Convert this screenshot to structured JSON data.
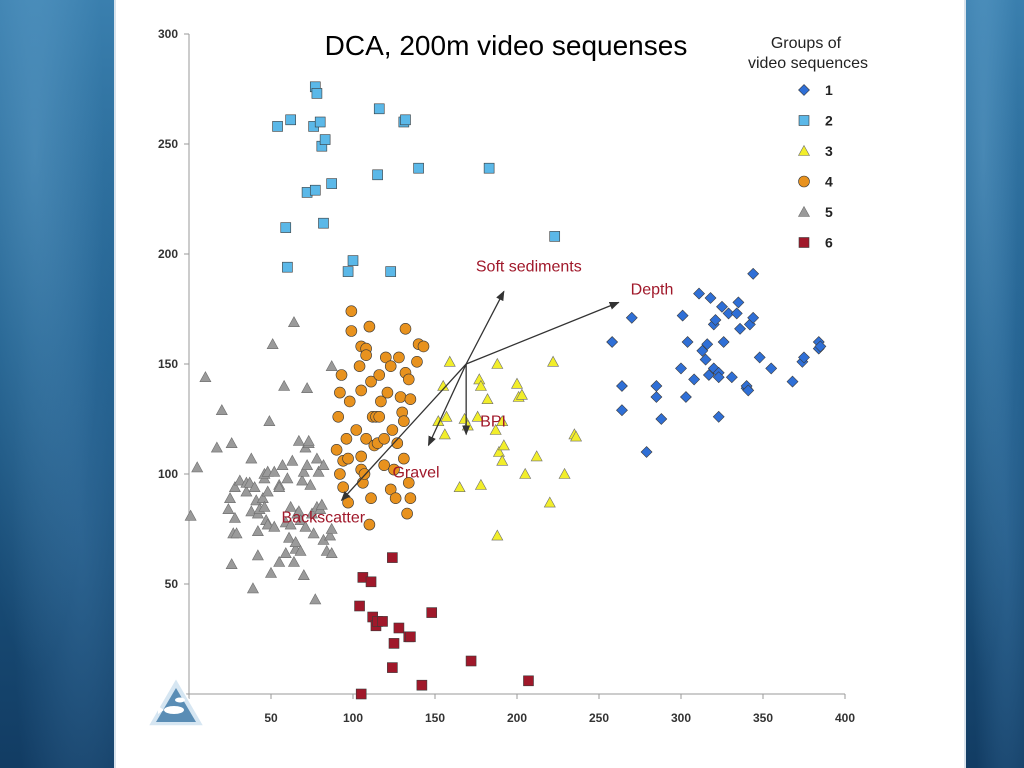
{
  "chart_data": {
    "type": "scatter",
    "title": "DCA, 200m video sequenses",
    "xlabel": "",
    "ylabel": "",
    "xlim": [
      0,
      400
    ],
    "ylim": [
      0,
      300
    ],
    "x_ticks": [
      0,
      50,
      100,
      150,
      200,
      250,
      300,
      350,
      400
    ],
    "y_ticks": [
      0,
      50,
      100,
      150,
      200,
      250,
      300
    ],
    "grid": false,
    "legend": {
      "title": [
        "Groups of",
        "video sequences"
      ],
      "placement": "top-right"
    },
    "series": [
      {
        "name": "1",
        "marker": "diamond",
        "color": "#2f6fd6",
        "points": [
          [
            258,
            160
          ],
          [
            264,
            140
          ],
          [
            264,
            129
          ],
          [
            270,
            171
          ],
          [
            279,
            110
          ],
          [
            285,
            140
          ],
          [
            285,
            135
          ],
          [
            288,
            125
          ],
          [
            300,
            148
          ],
          [
            301,
            172
          ],
          [
            303,
            135
          ],
          [
            304,
            160
          ],
          [
            308,
            143
          ],
          [
            311,
            182
          ],
          [
            313,
            156
          ],
          [
            315,
            152
          ],
          [
            316,
            159
          ],
          [
            317,
            145
          ],
          [
            318,
            180
          ],
          [
            320,
            168
          ],
          [
            320,
            148
          ],
          [
            321,
            170
          ],
          [
            323,
            146
          ],
          [
            323,
            144
          ],
          [
            323,
            126
          ],
          [
            325,
            176
          ],
          [
            326,
            160
          ],
          [
            329,
            173
          ],
          [
            331,
            144
          ],
          [
            334,
            173
          ],
          [
            335,
            178
          ],
          [
            336,
            166
          ],
          [
            340,
            139
          ],
          [
            340,
            140
          ],
          [
            341,
            138
          ],
          [
            342,
            168
          ],
          [
            344,
            191
          ],
          [
            344,
            171
          ],
          [
            348,
            153
          ],
          [
            355,
            148
          ],
          [
            368,
            142
          ],
          [
            374,
            151
          ],
          [
            375,
            153
          ],
          [
            384,
            157
          ],
          [
            384,
            160
          ],
          [
            385,
            158
          ]
        ]
      },
      {
        "name": "2",
        "marker": "square",
        "color": "#5bb8e8",
        "points": [
          [
            54,
            258
          ],
          [
            59,
            212
          ],
          [
            60,
            194
          ],
          [
            62,
            261
          ],
          [
            72,
            228
          ],
          [
            76,
            258
          ],
          [
            77,
            276
          ],
          [
            77,
            229
          ],
          [
            78,
            273
          ],
          [
            80,
            260
          ],
          [
            81,
            249
          ],
          [
            82,
            214
          ],
          [
            83,
            252
          ],
          [
            87,
            232
          ],
          [
            97,
            192
          ],
          [
            100,
            197
          ],
          [
            115,
            236
          ],
          [
            116,
            266
          ],
          [
            123,
            192
          ],
          [
            131,
            260
          ],
          [
            132,
            261
          ],
          [
            140,
            239
          ],
          [
            183,
            239
          ],
          [
            223,
            208
          ]
        ]
      },
      {
        "name": "3",
        "marker": "triangle",
        "color": "#f2ee2a",
        "points": [
          [
            152,
            124
          ],
          [
            155,
            140
          ],
          [
            156,
            118
          ],
          [
            157,
            126
          ],
          [
            159,
            151
          ],
          [
            165,
            94
          ],
          [
            168,
            125
          ],
          [
            170,
            122
          ],
          [
            176,
            126
          ],
          [
            177,
            143
          ],
          [
            178,
            95
          ],
          [
            178,
            140
          ],
          [
            182,
            134
          ],
          [
            187,
            120
          ],
          [
            188,
            150
          ],
          [
            188,
            72
          ],
          [
            189,
            110
          ],
          [
            191,
            106
          ],
          [
            191,
            124
          ],
          [
            192,
            113
          ],
          [
            200,
            141
          ],
          [
            201,
            135
          ],
          [
            203,
            136
          ],
          [
            205,
            100
          ],
          [
            212,
            108
          ],
          [
            220,
            87
          ],
          [
            222,
            151
          ],
          [
            229,
            100
          ],
          [
            235,
            118
          ],
          [
            236,
            117
          ]
        ]
      },
      {
        "name": "4",
        "marker": "circle",
        "color": "#e8921e",
        "points": [
          [
            90,
            111
          ],
          [
            91,
            126
          ],
          [
            92,
            100
          ],
          [
            92,
            137
          ],
          [
            93,
            145
          ],
          [
            94,
            106
          ],
          [
            94,
            94
          ],
          [
            96,
            116
          ],
          [
            97,
            87
          ],
          [
            97,
            107
          ],
          [
            98,
            133
          ],
          [
            99,
            165
          ],
          [
            99,
            174
          ],
          [
            102,
            120
          ],
          [
            104,
            149
          ],
          [
            105,
            108
          ],
          [
            105,
            102
          ],
          [
            105,
            158
          ],
          [
            105,
            138
          ],
          [
            106,
            96
          ],
          [
            107,
            100
          ],
          [
            108,
            157
          ],
          [
            108,
            154
          ],
          [
            108,
            116
          ],
          [
            110,
            77
          ],
          [
            110,
            167
          ],
          [
            111,
            89
          ],
          [
            111,
            142
          ],
          [
            112,
            126
          ],
          [
            113,
            113
          ],
          [
            114,
            126
          ],
          [
            115,
            114
          ],
          [
            116,
            145
          ],
          [
            116,
            126
          ],
          [
            117,
            133
          ],
          [
            119,
            104
          ],
          [
            119,
            116
          ],
          [
            120,
            153
          ],
          [
            121,
            137
          ],
          [
            123,
            149
          ],
          [
            123,
            93
          ],
          [
            124,
            120
          ],
          [
            125,
            102
          ],
          [
            126,
            89
          ],
          [
            127,
            114
          ],
          [
            128,
            153
          ],
          [
            129,
            135
          ],
          [
            130,
            128
          ],
          [
            131,
            107
          ],
          [
            131,
            124
          ],
          [
            132,
            146
          ],
          [
            132,
            166
          ],
          [
            133,
            82
          ],
          [
            134,
            143
          ],
          [
            134,
            96
          ],
          [
            135,
            134
          ],
          [
            135,
            89
          ],
          [
            139,
            151
          ],
          [
            140,
            159
          ],
          [
            143,
            158
          ]
        ]
      },
      {
        "name": "5",
        "marker": "triangle",
        "color": "#9a9a9a",
        "points": [
          [
            1,
            81
          ],
          [
            5,
            103
          ],
          [
            10,
            144
          ],
          [
            17,
            112
          ],
          [
            20,
            129
          ],
          [
            24,
            84
          ],
          [
            25,
            89
          ],
          [
            26,
            59
          ],
          [
            26,
            114
          ],
          [
            27,
            73
          ],
          [
            28,
            80
          ],
          [
            28,
            94
          ],
          [
            29,
            73
          ],
          [
            31,
            97
          ],
          [
            35,
            96
          ],
          [
            35,
            92
          ],
          [
            37,
            96
          ],
          [
            38,
            83
          ],
          [
            38,
            107
          ],
          [
            39,
            48
          ],
          [
            40,
            94
          ],
          [
            41,
            88
          ],
          [
            42,
            82
          ],
          [
            42,
            74
          ],
          [
            42,
            63
          ],
          [
            43,
            84
          ],
          [
            45,
            89
          ],
          [
            46,
            85
          ],
          [
            46,
            98
          ],
          [
            46,
            100
          ],
          [
            47,
            79
          ],
          [
            48,
            92
          ],
          [
            48,
            77
          ],
          [
            48,
            101
          ],
          [
            49,
            124
          ],
          [
            50,
            55
          ],
          [
            51,
            159
          ],
          [
            52,
            101
          ],
          [
            52,
            76
          ],
          [
            55,
            95
          ],
          [
            55,
            60
          ],
          [
            55,
            94
          ],
          [
            57,
            104
          ],
          [
            58,
            140
          ],
          [
            59,
            64
          ],
          [
            59,
            78
          ],
          [
            60,
            98
          ],
          [
            61,
            71
          ],
          [
            62,
            85
          ],
          [
            62,
            77
          ],
          [
            63,
            106
          ],
          [
            64,
            60
          ],
          [
            64,
            169
          ],
          [
            65,
            66
          ],
          [
            65,
            69
          ],
          [
            66,
            82
          ],
          [
            67,
            115
          ],
          [
            67,
            83
          ],
          [
            68,
            79
          ],
          [
            68,
            65
          ],
          [
            69,
            97
          ],
          [
            70,
            101
          ],
          [
            70,
            54
          ],
          [
            71,
            76
          ],
          [
            71,
            112
          ],
          [
            72,
            104
          ],
          [
            72,
            139
          ],
          [
            73,
            114
          ],
          [
            73,
            115
          ],
          [
            74,
            95
          ],
          [
            75,
            82
          ],
          [
            76,
            73
          ],
          [
            77,
            43
          ],
          [
            78,
            85
          ],
          [
            78,
            107
          ],
          [
            79,
            101
          ],
          [
            80,
            84
          ],
          [
            81,
            86
          ],
          [
            82,
            70
          ],
          [
            82,
            104
          ],
          [
            84,
            65
          ],
          [
            86,
            72
          ],
          [
            87,
            64
          ],
          [
            87,
            75
          ],
          [
            87,
            149
          ]
        ]
      },
      {
        "name": "6",
        "marker": "square",
        "color": "#a0182a",
        "points": [
          [
            104,
            40
          ],
          [
            105,
            0
          ],
          [
            106,
            53
          ],
          [
            111,
            51
          ],
          [
            112,
            35
          ],
          [
            114,
            31
          ],
          [
            115,
            33
          ],
          [
            118,
            33
          ],
          [
            124,
            12
          ],
          [
            124,
            62
          ],
          [
            125,
            23
          ],
          [
            128,
            30
          ],
          [
            134,
            26
          ],
          [
            135,
            26
          ],
          [
            142,
            4
          ],
          [
            148,
            37
          ],
          [
            172,
            15
          ],
          [
            207,
            6
          ]
        ]
      }
    ],
    "vectors": [
      {
        "label": "Soft sediments",
        "tip": [
          192,
          183
        ],
        "color": "#a0182a"
      },
      {
        "label": "Depth",
        "tip": [
          262,
          178
        ],
        "color": "#a0182a"
      },
      {
        "label": "BPI",
        "tip": [
          169,
          118
        ],
        "color": "#a0182a"
      },
      {
        "label": "Gravel",
        "tip": [
          146,
          113
        ],
        "color": "#a0182a"
      },
      {
        "label": "Backscatter",
        "tip": [
          93,
          88
        ],
        "color": "#a0182a"
      }
    ],
    "vector_origin": [
      169,
      150
    ]
  },
  "colors": {
    "axis": "#9a9a9a",
    "tick_text": "#333333",
    "arrow": "#333333",
    "vector_label": "#a0182a"
  }
}
